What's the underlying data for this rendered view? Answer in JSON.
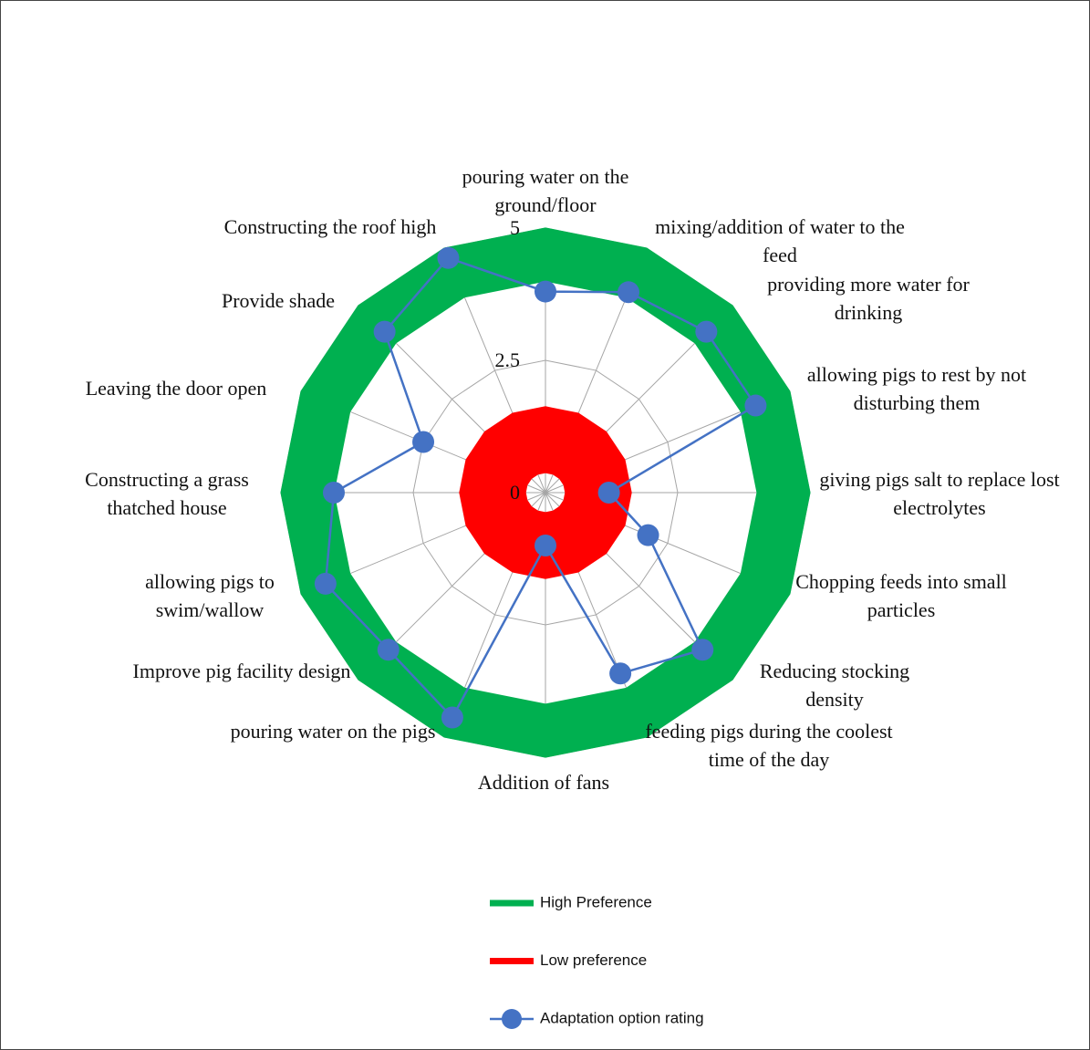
{
  "chart_data": {
    "type": "radar",
    "categories": [
      "pouring water on the ground/floor",
      "mixing/addition of water to the feed",
      "providing more water for drinking",
      "allowing pigs to rest by not disturbing them",
      "giving pigs salt to replace lost electrolytes",
      "Chopping feeds into small particles",
      "Reducing stocking density",
      "feeding pigs during the coolest time of the day",
      "Addition of fans",
      "pouring water on the pigs",
      "Improve pig facility design",
      "allowing pigs to swim/wallow",
      "Constructing a grass thatched house",
      "Leaving the door open",
      "Provide shade",
      "Constructing the roof high"
    ],
    "series": [
      {
        "name": "High Preference",
        "color": "#00b050",
        "values": [
          4.5,
          4.5,
          4.5,
          4.5,
          4.5,
          4.5,
          4.5,
          4.5,
          4.5,
          4.5,
          4.5,
          4.5,
          4.5,
          4.5,
          4.5,
          4.5
        ]
      },
      {
        "name": "Low preference",
        "color": "#ff0000",
        "values": [
          1,
          1,
          1,
          1,
          1,
          1,
          1,
          1,
          1,
          1,
          1,
          1,
          1,
          1,
          1,
          1
        ]
      },
      {
        "name": "Adaptation option rating",
        "color": "#4472c4",
        "markers": true,
        "values": [
          3.8,
          4.1,
          4.3,
          4.3,
          1.2,
          2.1,
          4.2,
          3.7,
          1.0,
          4.6,
          4.2,
          4.5,
          4.0,
          2.5,
          4.3,
          4.8
        ]
      }
    ],
    "rlim": [
      0,
      5
    ],
    "rticks": [
      0,
      2.5,
      5
    ],
    "grid": true
  }
}
